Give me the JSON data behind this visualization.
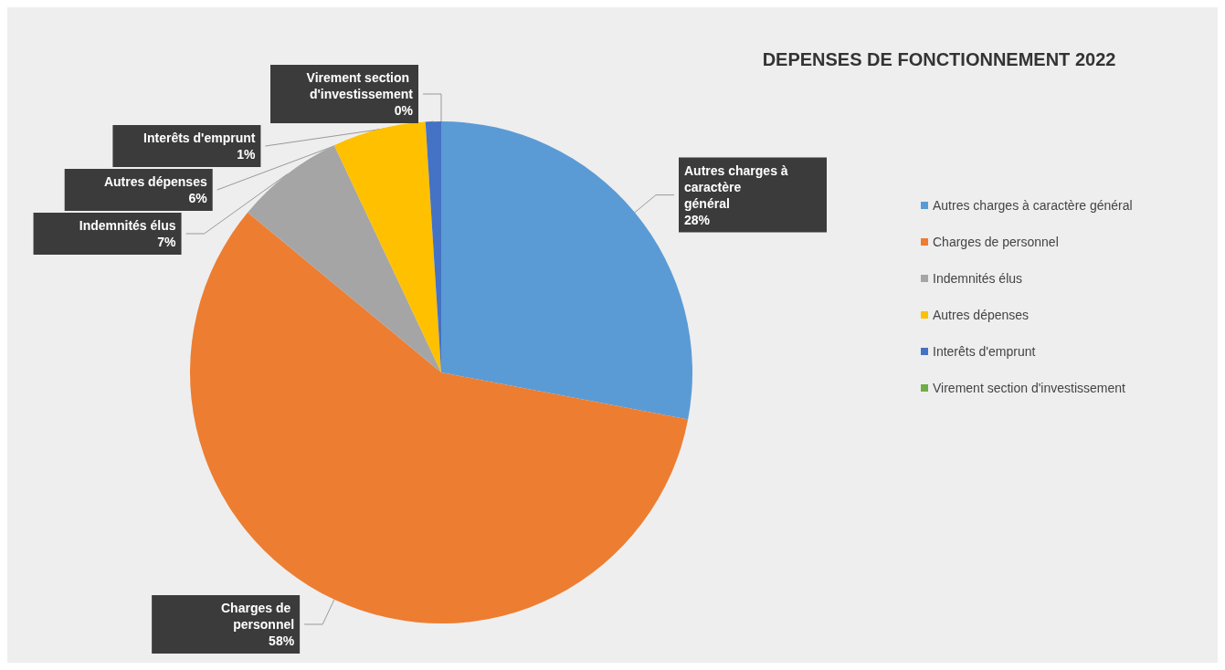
{
  "chart_data": {
    "type": "pie",
    "title": "DEPENSES DE FONCTIONNEMENT 2022",
    "categories": [
      "Autres charges à caractère général",
      "Charges de personnel",
      "Indemnités élus",
      "Autres dépenses",
      "Interêts d'emprunt",
      "Virement section d'investissement"
    ],
    "values": [
      28,
      58,
      7,
      6,
      1,
      0
    ],
    "colors": [
      "#5b9bd5",
      "#ed7d31",
      "#a5a5a5",
      "#ffc000",
      "#4472c4",
      "#70ad47"
    ],
    "value_labels": [
      "28%",
      "58%",
      "7%",
      "6%",
      "1%",
      "0%"
    ],
    "legend": "right"
  }
}
